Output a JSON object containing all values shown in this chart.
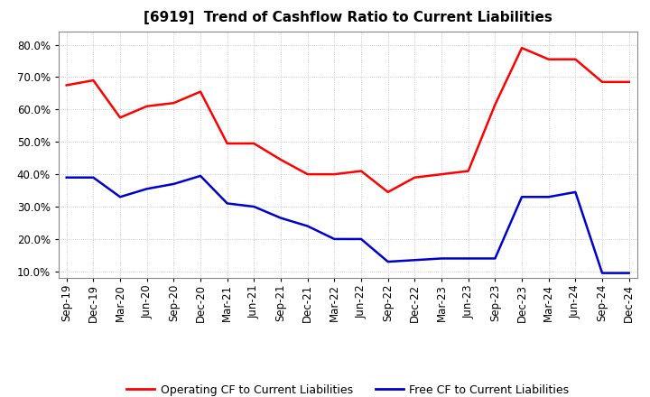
{
  "title": "[6919]  Trend of Cashflow Ratio to Current Liabilities",
  "x_labels": [
    "Sep-19",
    "Dec-19",
    "Mar-20",
    "Jun-20",
    "Sep-20",
    "Dec-20",
    "Mar-21",
    "Jun-21",
    "Sep-21",
    "Dec-21",
    "Mar-22",
    "Jun-22",
    "Sep-22",
    "Dec-22",
    "Mar-23",
    "Jun-23",
    "Sep-23",
    "Dec-23",
    "Mar-24",
    "Jun-24",
    "Sep-24",
    "Dec-24"
  ],
  "operating_cf": [
    0.675,
    0.69,
    0.575,
    0.61,
    0.62,
    0.655,
    0.495,
    0.495,
    0.445,
    0.4,
    0.4,
    0.41,
    0.345,
    0.39,
    0.4,
    0.41,
    0.615,
    0.79,
    0.755,
    0.755,
    0.685,
    0.685
  ],
  "free_cf": [
    0.39,
    0.39,
    0.33,
    0.355,
    0.37,
    0.395,
    0.31,
    0.3,
    0.265,
    0.24,
    0.2,
    0.2,
    0.13,
    0.135,
    0.14,
    0.14,
    0.14,
    0.33,
    0.33,
    0.345,
    0.095,
    0.095
  ],
  "operating_color": "#FF0000",
  "free_color": "#0000CC",
  "ylim": [
    0.08,
    0.84
  ],
  "yticks": [
    0.1,
    0.2,
    0.3,
    0.4,
    0.5,
    0.6,
    0.7,
    0.8
  ],
  "legend_labels": [
    "Operating CF to Current Liabilities",
    "Free CF to Current Liabilities"
  ],
  "bg_color": "#FFFFFF",
  "grid_color": "#BBBBBB",
  "title_fontsize": 11,
  "tick_fontsize": 8.5
}
